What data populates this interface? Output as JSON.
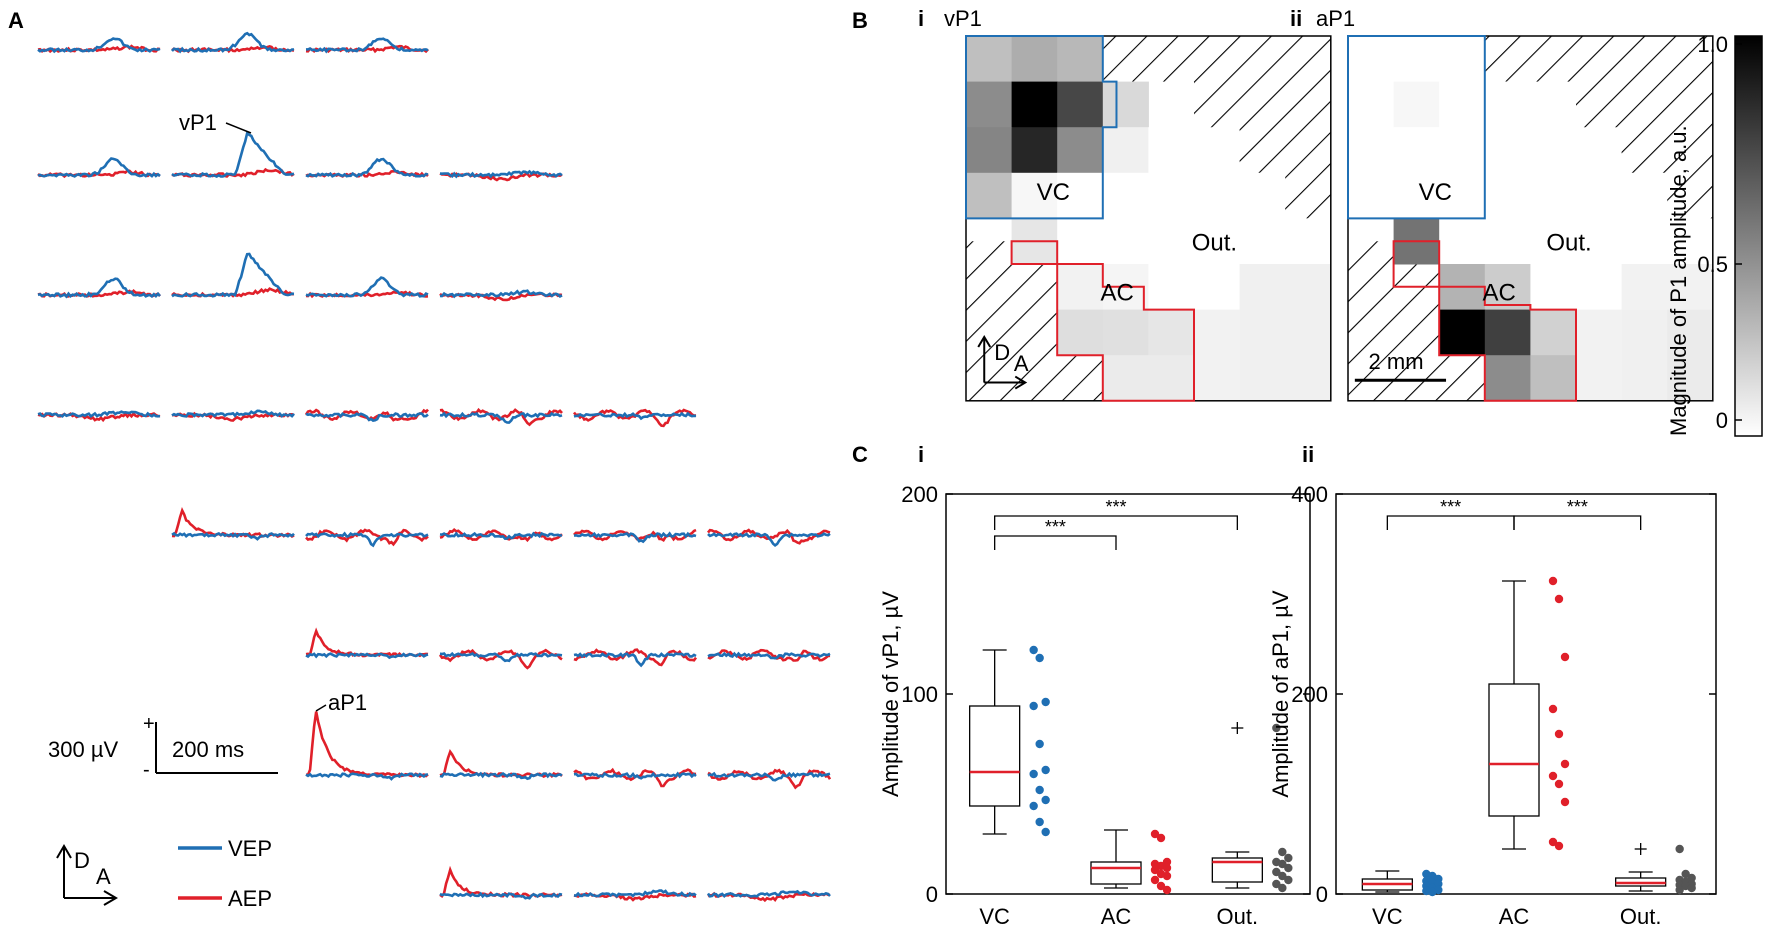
{
  "panels": {
    "a": "A",
    "b": "B",
    "c": "C",
    "sub_i": "i",
    "sub_ii": "ii"
  },
  "panel_a": {
    "annotations": {
      "vp1": "vP1",
      "ap1": "aP1"
    },
    "scale": {
      "plus": "+",
      "minus": "-",
      "voltage": "300 µV",
      "time": "200 ms"
    },
    "axes": {
      "d": "D",
      "a": "A"
    },
    "legend": [
      {
        "label": "VEP",
        "color": "#1f6fb4"
      },
      {
        "label": "AEP",
        "color": "#e0202a"
      }
    ]
  },
  "panel_b": {
    "map_i": {
      "title": "vP1",
      "vc": "VC",
      "ac": "AC",
      "out": "Out.",
      "d": "D",
      "a": "A"
    },
    "map_ii": {
      "title": "aP1",
      "vc": "VC",
      "ac": "AC",
      "out": "Out.",
      "scalebar": "2 mm"
    },
    "colorbar": {
      "label": "Magnitude of P1 amplitude, a.u.",
      "ticks": [
        "1.0",
        "0.5",
        "0"
      ]
    }
  },
  "colors": {
    "vep": "#1f6fb4",
    "aep": "#e0202a",
    "out": "#555555"
  },
  "chart_data": [
    {
      "type": "box",
      "panel": "C i",
      "ylabel": "Amplitude of vP1, µV",
      "ylim": [
        0,
        200
      ],
      "yticks": [
        "0",
        "100",
        "200"
      ],
      "categories": [
        "VC",
        "AC",
        "Out."
      ],
      "boxes": [
        {
          "name": "VC",
          "min": 30,
          "q1": 44,
          "median": 61,
          "q3": 94,
          "max": 122,
          "outliers": [],
          "points": [
            122,
            118,
            96,
            94,
            75,
            62,
            60,
            52,
            47,
            44,
            36,
            31
          ]
        },
        {
          "name": "AC",
          "min": 3,
          "q1": 5,
          "median": 13,
          "q3": 16,
          "max": 32,
          "outliers": [],
          "points": [
            30,
            28,
            16,
            15,
            14,
            13,
            12,
            10,
            9,
            7,
            4,
            2
          ]
        },
        {
          "name": "Out.",
          "min": 3,
          "q1": 6,
          "median": 16,
          "q3": 18,
          "max": 21,
          "outliers": [
            83
          ],
          "points": [
            83,
            21,
            18,
            16,
            15,
            13,
            11,
            9,
            7,
            5,
            3
          ]
        }
      ],
      "significance": [
        {
          "pair": [
            "VC",
            "AC"
          ],
          "label": "***"
        },
        {
          "pair": [
            "VC",
            "Out."
          ],
          "label": "***"
        }
      ]
    },
    {
      "type": "box",
      "panel": "C ii",
      "ylabel": "Amplitude of aP1, µV",
      "ylim": [
        0,
        400
      ],
      "yticks": [
        "0",
        "200",
        "400"
      ],
      "categories": [
        "VC",
        "AC",
        "Out."
      ],
      "boxes": [
        {
          "name": "VC",
          "min": 2,
          "q1": 4,
          "median": 10,
          "q3": 15,
          "max": 23,
          "outliers": [],
          "points": [
            20,
            18,
            15,
            13,
            11,
            10,
            8,
            6,
            4,
            3,
            2
          ]
        },
        {
          "name": "AC",
          "min": 45,
          "q1": 78,
          "median": 130,
          "q3": 210,
          "max": 313,
          "outliers": [],
          "points": [
            313,
            295,
            237,
            185,
            160,
            130,
            118,
            110,
            92,
            52,
            48
          ]
        },
        {
          "name": "Out.",
          "min": 3,
          "q1": 8,
          "median": 11,
          "q3": 16,
          "max": 22,
          "outliers": [
            45
          ],
          "points": [
            45,
            20,
            16,
            14,
            12,
            10,
            9,
            8,
            6,
            4
          ]
        }
      ],
      "significance": [
        {
          "pair": [
            "VC",
            "AC"
          ],
          "label": "***"
        },
        {
          "pair": [
            "AC",
            "Out."
          ],
          "label": "***"
        }
      ]
    }
  ]
}
